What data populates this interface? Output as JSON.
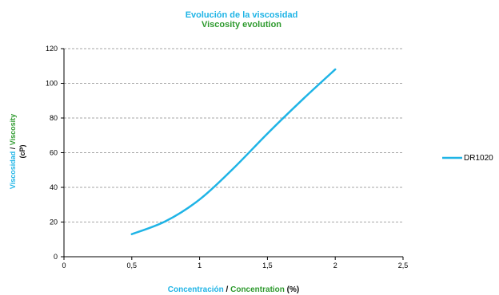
{
  "colors": {
    "spanish_text": "#1fb4e6",
    "english_text": "#2e9a2e",
    "series_line": "#1fb4e6",
    "gridline": "#a6a6a6"
  },
  "chart_data": {
    "type": "line",
    "title": "Evolución de la  viscosidad",
    "subtitle": "Viscosity evolution",
    "xlabel": {
      "es": "Concentración",
      "separator": " / ",
      "en": "Concentration",
      "unit": " (%)"
    },
    "ylabel": {
      "es": "Viscosidad",
      "separator": " / ",
      "en": "Viscosity",
      "unit": "(cP)"
    },
    "xlim": [
      0,
      2.5
    ],
    "ylim": [
      0,
      120
    ],
    "x_ticks": [
      0,
      0.5,
      1,
      1.5,
      2,
      2.5
    ],
    "x_tick_labels": [
      "0",
      "0,5",
      "1",
      "1,5",
      "2",
      "2,5"
    ],
    "y_ticks": [
      0,
      20,
      40,
      60,
      80,
      100,
      120
    ],
    "y_tick_labels": [
      "0",
      "20",
      "40",
      "60",
      "80",
      "100",
      "120"
    ],
    "grid": {
      "horizontal": true,
      "style": "dashed"
    },
    "legend_position": "right",
    "series": [
      {
        "name": "DR1020",
        "x": [
          0.5,
          0.75,
          1.0,
          1.25,
          1.5,
          1.75,
          2.0
        ],
        "y": [
          13,
          20.5,
          33,
          51,
          71,
          90,
          108
        ]
      }
    ]
  }
}
